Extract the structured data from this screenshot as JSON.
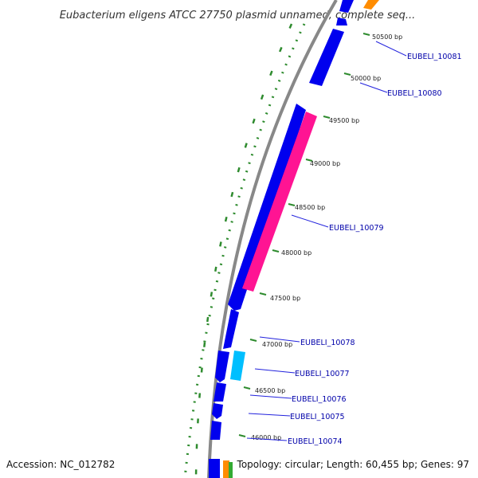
{
  "title": "Eubacterium eligens ATCC 27750 plasmid unnamed, complete seq...",
  "footer": {
    "accession": "Accession: NC_012782",
    "summary": "Topology: circular; Length: 60,455 bp; Genes: 97"
  },
  "colors": {
    "cds_forward": "#0000ee",
    "cds_reverse": "#ff1493",
    "cds_other": "#00bfff",
    "backbone": "#888888",
    "gc_dots": "#2e8b2e",
    "label_line": "#2222dd",
    "orange": "#ff8c00"
  },
  "ticks": [
    {
      "label": "50500 bp"
    },
    {
      "label": "50000 bp"
    },
    {
      "label": "49500 bp"
    },
    {
      "label": "49000 bp"
    },
    {
      "label": "48500 bp"
    },
    {
      "label": "48000 bp"
    },
    {
      "label": "47500 bp"
    },
    {
      "label": "47000 bp"
    },
    {
      "label": "46500 bp"
    },
    {
      "label": "46000 bp"
    }
  ],
  "genes": [
    {
      "label": "EUBELI_10081"
    },
    {
      "label": "EUBELI_10080"
    },
    {
      "label": "EUBELI_10079"
    },
    {
      "label": "EUBELI_10078"
    },
    {
      "label": "EUBELI_10077"
    },
    {
      "label": "EUBELI_10076"
    },
    {
      "label": "EUBELI_10075"
    },
    {
      "label": "EUBELI_10074"
    }
  ]
}
